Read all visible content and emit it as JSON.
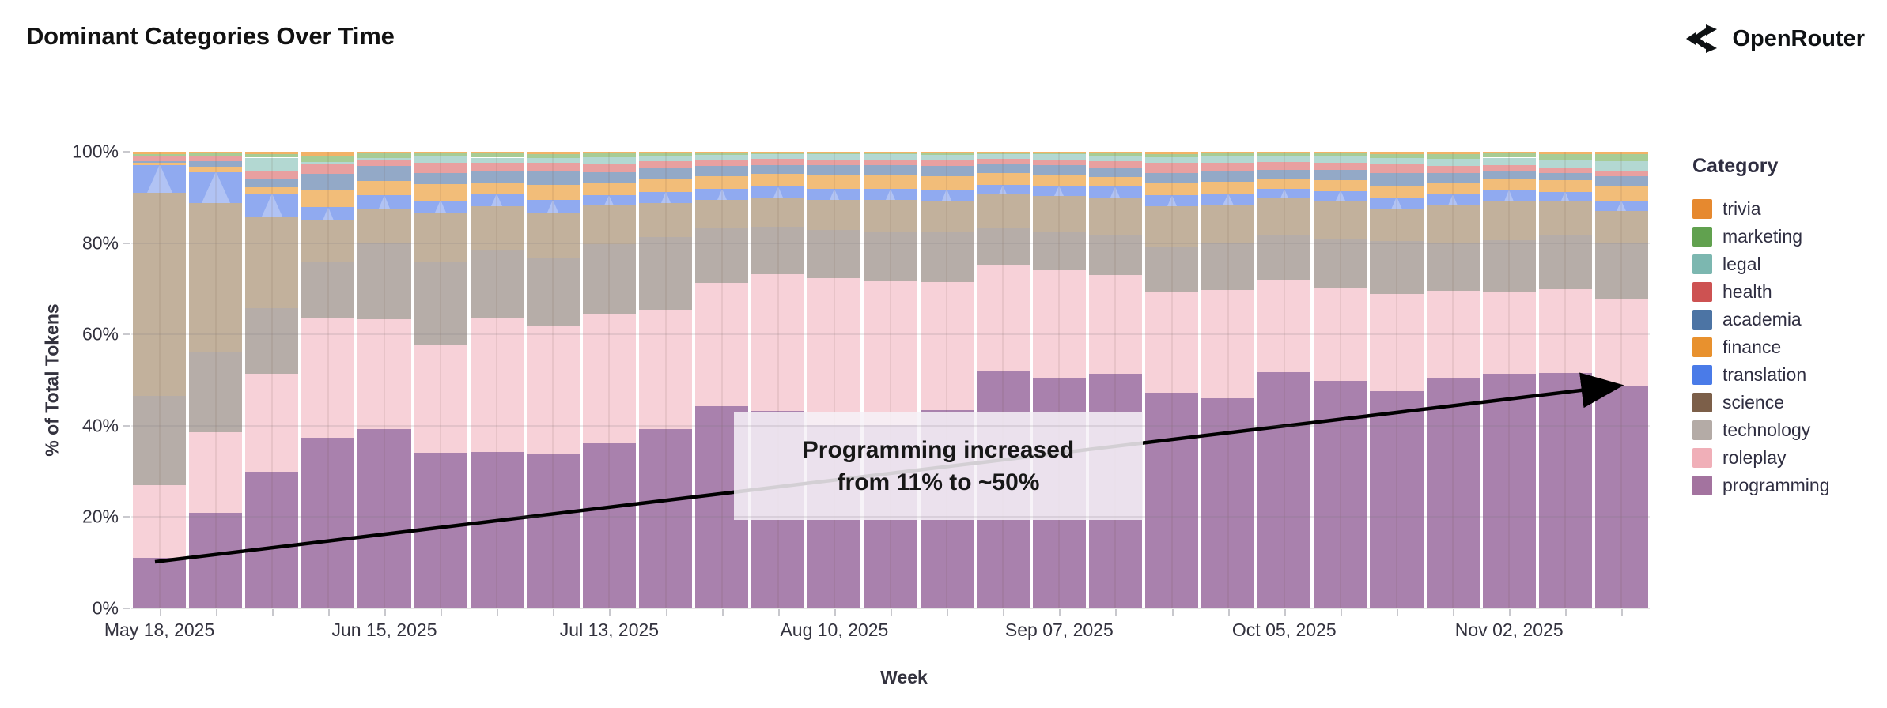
{
  "page": {
    "title": "Dominant Categories Over Time",
    "brand": "OpenRouter"
  },
  "chart_data": {
    "type": "bar",
    "stacked": true,
    "title": "Dominant Categories Over Time",
    "xlabel": "Week",
    "ylabel": "% of Total Tokens",
    "ylim": [
      0,
      100
    ],
    "grid": true,
    "legend_position": "right",
    "legend_title": "Category",
    "y_ticks": [
      "0%",
      "20%",
      "40%",
      "60%",
      "80%",
      "100%"
    ],
    "x_tick_labels": [
      "May 18, 2025",
      "Jun 15, 2025",
      "Jul 13, 2025",
      "Aug 10, 2025",
      "Sep 07, 2025",
      "Oct 05, 2025",
      "Nov 02, 2025"
    ],
    "x_tick_label_indices": [
      0,
      4,
      8,
      12,
      16,
      20,
      24
    ],
    "categories": [
      "May 18, 2025",
      "May 25, 2025",
      "Jun 01, 2025",
      "Jun 08, 2025",
      "Jun 15, 2025",
      "Jun 22, 2025",
      "Jun 29, 2025",
      "Jul 06, 2025",
      "Jul 13, 2025",
      "Jul 20, 2025",
      "Jul 27, 2025",
      "Aug 03, 2025",
      "Aug 10, 2025",
      "Aug 17, 2025",
      "Aug 24, 2025",
      "Aug 31, 2025",
      "Sep 07, 2025",
      "Sep 14, 2025",
      "Sep 21, 2025",
      "Sep 28, 2025",
      "Oct 05, 2025",
      "Oct 12, 2025",
      "Oct 19, 2025",
      "Oct 26, 2025",
      "Nov 02, 2025",
      "Nov 09, 2025",
      "Nov 16, 2025"
    ],
    "legend_order_top_to_bottom": [
      "trivia",
      "marketing",
      "legal",
      "health",
      "academia",
      "finance",
      "translation",
      "science",
      "technology",
      "roleplay",
      "programming"
    ],
    "series": [
      {
        "name": "programming",
        "legend_color": "#A3739F",
        "bar_color": "#A981AD",
        "values": [
          11,
          21,
          30,
          37.3,
          39.3,
          34.1,
          34.3,
          33.7,
          36.2,
          39.3,
          44.3,
          43.3,
          40.2,
          40.1,
          43.4,
          52,
          50.4,
          51.3,
          47.2,
          46.1,
          51.8,
          49.8,
          47.6,
          50.5,
          51.4,
          51.6,
          48.8
        ]
      },
      {
        "name": "roleplay",
        "legend_color": "#F0AFB8",
        "bar_color": "#F7D1D8",
        "values": [
          16,
          17.5,
          21.4,
          26.2,
          24.1,
          23.6,
          29.3,
          28.1,
          28.3,
          26.1,
          27,
          29.8,
          32.2,
          31.7,
          28.1,
          23.2,
          23.6,
          21.7,
          22,
          23.6,
          20.1,
          20.5,
          21.3,
          19.1,
          17.8,
          18.3,
          19.1
        ]
      },
      {
        "name": "technology",
        "legend_color": "#B4ABA6",
        "bar_color": "#B6ADA8",
        "values": [
          19.5,
          17.7,
          14.4,
          12.5,
          16.6,
          18.3,
          14.7,
          14.8,
          15.2,
          16,
          11.9,
          10.4,
          10.4,
          10.6,
          10.8,
          8,
          8.5,
          8.9,
          9.8,
          10.3,
          10,
          10.5,
          11.6,
          10.5,
          11.4,
          11.9,
          12
        ]
      },
      {
        "name": "science",
        "legend_color": "#7C5F49",
        "bar_color": "#C2B19C",
        "values": [
          44.5,
          32.6,
          20,
          9,
          7.5,
          10.6,
          9.7,
          10.1,
          8.5,
          7.3,
          6.3,
          6.5,
          6.6,
          7.1,
          6.9,
          7.5,
          7.8,
          8.1,
          9,
          8.3,
          7.9,
          8.4,
          6.8,
          8.1,
          8.5,
          7.4,
          7.2
        ]
      },
      {
        "name": "translation",
        "legend_color": "#4A7BE8",
        "bar_color": "#90AAF0",
        "values": [
          6,
          6.7,
          4.8,
          2.9,
          2.9,
          2.7,
          2.7,
          2.7,
          2.3,
          2.5,
          2.4,
          2.4,
          2.4,
          2.4,
          2.5,
          2.1,
          2.3,
          2.4,
          2.4,
          2.6,
          2.1,
          2.2,
          2.7,
          2.4,
          2.5,
          2,
          2.2
        ]
      },
      {
        "name": "finance",
        "legend_color": "#E8912E",
        "bar_color": "#F2BD79",
        "values": [
          0.5,
          1.2,
          1.6,
          3.6,
          3.2,
          3.6,
          2.5,
          3.4,
          2.6,
          3,
          2.7,
          2.7,
          3.1,
          2.9,
          2.9,
          2.5,
          2.4,
          2.1,
          2.7,
          2.6,
          2.1,
          2.4,
          2.6,
          2.4,
          2.5,
          2.5,
          3.1
        ]
      },
      {
        "name": "academia",
        "legend_color": "#4C74A4",
        "bar_color": "#93A9C7",
        "values": [
          0.4,
          1.2,
          2,
          3.6,
          3.2,
          2.5,
          2.7,
          2.9,
          2.4,
          2.2,
          2.2,
          1.9,
          2.2,
          2.2,
          2.2,
          2,
          2.1,
          2.1,
          2.3,
          2.4,
          2.1,
          2.2,
          2.7,
          2.4,
          1.6,
          1.6,
          2.2
        ]
      },
      {
        "name": "health",
        "legend_color": "#CD5252",
        "bar_color": "#E8A0A0",
        "values": [
          1,
          1,
          1.5,
          2.2,
          1.4,
          2.2,
          1.7,
          1.8,
          1.9,
          1.6,
          1.4,
          1.4,
          1.2,
          1.3,
          1.4,
          1.2,
          1.2,
          1.4,
          2.1,
          1.7,
          1.6,
          1.6,
          1.9,
          1.4,
          1.4,
          1.2,
          1.2
        ]
      },
      {
        "name": "legal",
        "legend_color": "#7CB7B0",
        "bar_color": "#B3D8D2",
        "values": [
          0.2,
          0.3,
          3,
          0.5,
          0.4,
          1.3,
          1.1,
          1.1,
          1.4,
          1.1,
          1.1,
          1.1,
          1.1,
          1.1,
          1.1,
          0.9,
          1.1,
          1,
          1.3,
          1.3,
          1.2,
          1.4,
          1.4,
          1.7,
          1.6,
          1.8,
          2.2
        ]
      },
      {
        "name": "marketing",
        "legend_color": "#61A14F",
        "bar_color": "#A7CC95",
        "values": [
          0.3,
          0.4,
          0.8,
          1.4,
          1,
          0.7,
          0.9,
          0.9,
          0.8,
          0.6,
          0.4,
          0.3,
          0.4,
          0.4,
          0.4,
          0.4,
          0.4,
          0.6,
          0.7,
          0.7,
          0.7,
          0.7,
          0.9,
          0.9,
          0.9,
          1.1,
          1.4
        ]
      },
      {
        "name": "trivia",
        "legend_color": "#E6892F",
        "bar_color": "#F2B267",
        "values": [
          0.6,
          0.4,
          0.5,
          0.8,
          0.4,
          0.4,
          0.4,
          0.5,
          0.4,
          0.3,
          0.3,
          0.2,
          0.2,
          0.2,
          0.3,
          0.2,
          0.2,
          0.4,
          0.5,
          0.4,
          0.4,
          0.3,
          0.5,
          0.6,
          0.4,
          0.6,
          0.6
        ]
      }
    ],
    "annotation": {
      "line1": "Programming increased",
      "line2": "from 11% to ~50%",
      "arrow_from_pct": 11,
      "arrow_to_pct": 50
    }
  }
}
